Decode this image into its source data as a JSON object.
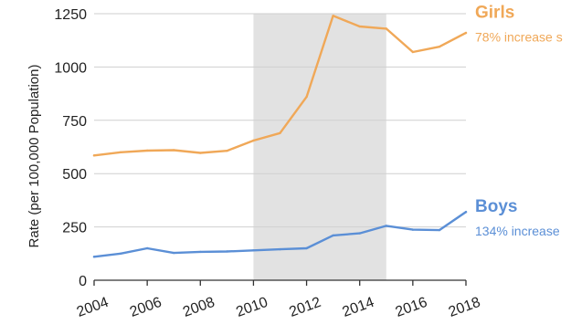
{
  "chart_data": {
    "type": "line",
    "ylabel": "Rate (per 100,000 Population)",
    "xlabel": "",
    "title": "",
    "xlim": [
      2004,
      2018
    ],
    "ylim": [
      0,
      1250
    ],
    "x_ticks": [
      2004,
      2006,
      2008,
      2010,
      2012,
      2014,
      2016,
      2018
    ],
    "y_ticks": [
      0,
      250,
      500,
      750,
      1000,
      1250
    ],
    "shaded_region": {
      "x_start": 2010,
      "x_end": 2015,
      "color": "#e2e2e2"
    },
    "grid": true,
    "series": [
      {
        "name": "Girls",
        "annotation": "78% increase s",
        "color": "#f0a858",
        "x": [
          2004,
          2005,
          2006,
          2007,
          2008,
          2009,
          2010,
          2011,
          2012,
          2013,
          2014,
          2015,
          2016,
          2017,
          2018
        ],
        "values": [
          585,
          600,
          608,
          610,
          597,
          607,
          655,
          690,
          860,
          1240,
          1190,
          1180,
          1070,
          1095,
          1160
        ]
      },
      {
        "name": "Boys",
        "annotation": "134% increase",
        "color": "#5b8fd6",
        "x": [
          2004,
          2005,
          2006,
          2007,
          2008,
          2009,
          2010,
          2011,
          2012,
          2013,
          2014,
          2015,
          2016,
          2017,
          2018
        ],
        "values": [
          110,
          125,
          150,
          128,
          133,
          135,
          140,
          145,
          150,
          210,
          220,
          255,
          237,
          235,
          320
        ]
      }
    ]
  }
}
